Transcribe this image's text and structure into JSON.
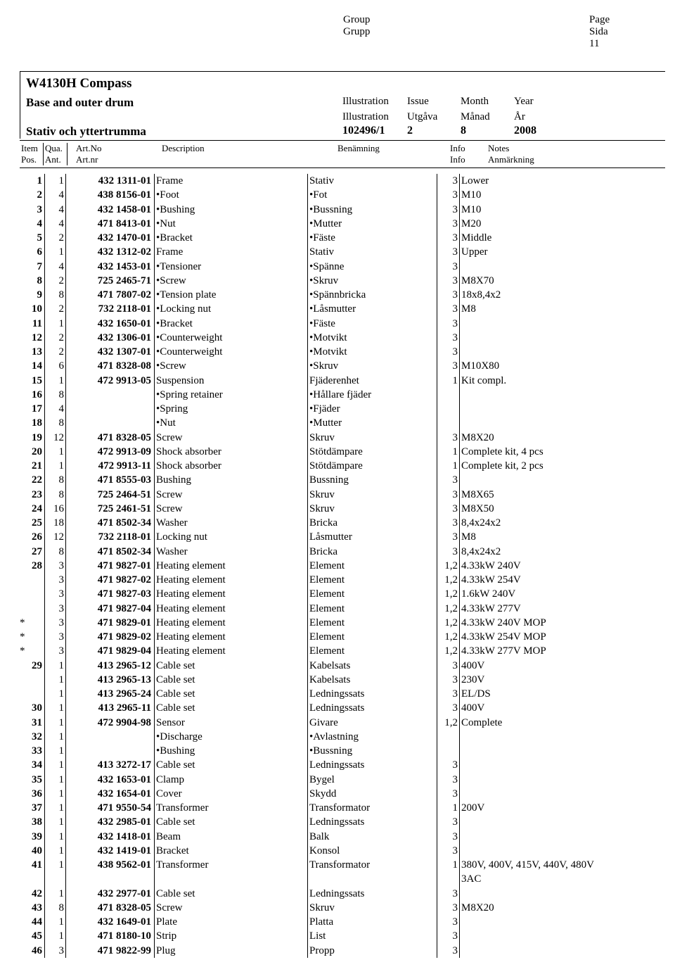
{
  "top": {
    "group_en": "Group",
    "group_sv": "Grupp",
    "page_en": "Page",
    "page_sv": "Sida",
    "page_no": "11"
  },
  "title": {
    "main": "W4130H Compass",
    "sub_en": "Base and outer drum",
    "sub_sv": "Stativ och yttertrumma",
    "ill_en": "Illustration",
    "ill_sv": "Illustration",
    "issue_en": "Issue",
    "issue_sv": "Utgåva",
    "month_en": "Month",
    "month_sv": "Månad",
    "year_en": "Year",
    "year_sv": "År",
    "ill_val": "102496/1",
    "issue_val": "2",
    "month_val": "8",
    "year_val": "2008"
  },
  "thead": {
    "item_en": "Item",
    "item_sv": "Pos.",
    "qua_en": "Qua.",
    "qua_sv": "Ant.",
    "art_en": "Art.No",
    "art_sv": "Art.nr",
    "desc_en": "Description",
    "ben": "Benämning",
    "info": "Info",
    "notes_en": "Notes",
    "notes_sv": "Anmärkning"
  },
  "rows": [
    {
      "star": "",
      "item": "1",
      "qua": "1",
      "art": "432 1311-01",
      "desc": "Frame",
      "ben": "Stativ",
      "info": "3",
      "notes": "Lower"
    },
    {
      "star": "",
      "item": "2",
      "qua": "4",
      "art": "438 8156-01",
      "desc": "•Foot",
      "ben": "•Fot",
      "info": "3",
      "notes": "M10"
    },
    {
      "star": "",
      "item": "3",
      "qua": "4",
      "art": "432 1458-01",
      "desc": "•Bushing",
      "ben": "•Bussning",
      "info": "3",
      "notes": "M10"
    },
    {
      "star": "",
      "item": "4",
      "qua": "4",
      "art": "471 8413-01",
      "desc": "•Nut",
      "ben": "•Mutter",
      "info": "3",
      "notes": "M20"
    },
    {
      "star": "",
      "item": "5",
      "qua": "2",
      "art": "432 1470-01",
      "desc": "•Bracket",
      "ben": "•Fäste",
      "info": "3",
      "notes": "Middle"
    },
    {
      "star": "",
      "item": "6",
      "qua": "1",
      "art": "432 1312-02",
      "desc": "Frame",
      "ben": "Stativ",
      "info": "3",
      "notes": "Upper"
    },
    {
      "star": "",
      "item": "7",
      "qua": "4",
      "art": "432 1453-01",
      "desc": "•Tensioner",
      "ben": "•Spänne",
      "info": "3",
      "notes": ""
    },
    {
      "star": "",
      "item": "8",
      "qua": "2",
      "art": "725 2465-71",
      "desc": "•Screw",
      "ben": "•Skruv",
      "info": "3",
      "notes": "M8X70"
    },
    {
      "star": "",
      "item": "9",
      "qua": "8",
      "art": "471 7807-02",
      "desc": "•Tension plate",
      "ben": "•Spännbricka",
      "info": "3",
      "notes": "18x8,4x2"
    },
    {
      "star": "",
      "item": "10",
      "qua": "2",
      "art": "732 2118-01",
      "desc": "•Locking nut",
      "ben": "•Låsmutter",
      "info": "3",
      "notes": "M8"
    },
    {
      "star": "",
      "item": "11",
      "qua": "1",
      "art": "432 1650-01",
      "desc": "•Bracket",
      "ben": "•Fäste",
      "info": "3",
      "notes": ""
    },
    {
      "star": "",
      "item": "12",
      "qua": "2",
      "art": "432 1306-01",
      "desc": "•Counterweight",
      "ben": "•Motvikt",
      "info": "3",
      "notes": ""
    },
    {
      "star": "",
      "item": "13",
      "qua": "2",
      "art": "432 1307-01",
      "desc": "•Counterweight",
      "ben": "•Motvikt",
      "info": "3",
      "notes": ""
    },
    {
      "star": "",
      "item": "14",
      "qua": "6",
      "art": "471 8328-08",
      "desc": "•Screw",
      "ben": "•Skruv",
      "info": "3",
      "notes": "M10X80"
    },
    {
      "star": "",
      "item": "15",
      "qua": "1",
      "art": "472 9913-05",
      "desc": "Suspension",
      "ben": "Fjäderenhet",
      "info": "1",
      "notes": "Kit compl."
    },
    {
      "star": "",
      "item": "16",
      "qua": "8",
      "art": "",
      "desc": "•Spring retainer",
      "ben": "•Hållare fjäder",
      "info": "",
      "notes": ""
    },
    {
      "star": "",
      "item": "17",
      "qua": "4",
      "art": "",
      "desc": "•Spring",
      "ben": "•Fjäder",
      "info": "",
      "notes": ""
    },
    {
      "star": "",
      "item": "18",
      "qua": "8",
      "art": "",
      "desc": "•Nut",
      "ben": "•Mutter",
      "info": "",
      "notes": ""
    },
    {
      "star": "",
      "item": "19",
      "qua": "12",
      "art": "471 8328-05",
      "desc": "Screw",
      "ben": "Skruv",
      "info": "3",
      "notes": "M8X20"
    },
    {
      "star": "",
      "item": "20",
      "qua": "1",
      "art": "472 9913-09",
      "desc": "Shock absorber",
      "ben": "Stötdämpare",
      "info": "1",
      "notes": "Complete kit, 4 pcs"
    },
    {
      "star": "",
      "item": "21",
      "qua": "1",
      "art": "472 9913-11",
      "desc": "Shock absorber",
      "ben": "Stötdämpare",
      "info": "1",
      "notes": "Complete kit, 2 pcs"
    },
    {
      "star": "",
      "item": "22",
      "qua": "8",
      "art": "471 8555-03",
      "desc": "Bushing",
      "ben": "Bussning",
      "info": "3",
      "notes": ""
    },
    {
      "star": "",
      "item": "23",
      "qua": "8",
      "art": "725 2464-51",
      "desc": "Screw",
      "ben": "Skruv",
      "info": "3",
      "notes": "M8X65"
    },
    {
      "star": "",
      "item": "24",
      "qua": "16",
      "art": "725 2461-51",
      "desc": "Screw",
      "ben": "Skruv",
      "info": "3",
      "notes": "M8X50"
    },
    {
      "star": "",
      "item": "25",
      "qua": "18",
      "art": "471 8502-34",
      "desc": "Washer",
      "ben": "Bricka",
      "info": "3",
      "notes": "8,4x24x2"
    },
    {
      "star": "",
      "item": "26",
      "qua": "12",
      "art": "732 2118-01",
      "desc": "Locking nut",
      "ben": "Låsmutter",
      "info": "3",
      "notes": "M8"
    },
    {
      "star": "",
      "item": "27",
      "qua": "8",
      "art": "471 8502-34",
      "desc": "Washer",
      "ben": "Bricka",
      "info": "3",
      "notes": "8,4x24x2"
    },
    {
      "star": "",
      "item": "28",
      "qua": "3",
      "art": "471 9827-01",
      "desc": "Heating element",
      "ben": "Element",
      "info": "1,2",
      "notes": "4.33kW 240V"
    },
    {
      "star": "",
      "item": "",
      "qua": "3",
      "art": "471 9827-02",
      "desc": "Heating element",
      "ben": "Element",
      "info": "1,2",
      "notes": "4.33kW 254V"
    },
    {
      "star": "",
      "item": "",
      "qua": "3",
      "art": "471 9827-03",
      "desc": "Heating element",
      "ben": "Element",
      "info": "1,2",
      "notes": "1.6kW 240V"
    },
    {
      "star": "",
      "item": "",
      "qua": "3",
      "art": "471 9827-04",
      "desc": "Heating element",
      "ben": "Element",
      "info": "1,2",
      "notes": "4.33kW 277V"
    },
    {
      "star": "*",
      "item": "",
      "qua": "3",
      "art": "471 9829-01",
      "desc": "Heating element",
      "ben": "Element",
      "info": "1,2",
      "notes": "4.33kW 240V MOP"
    },
    {
      "star": "*",
      "item": "",
      "qua": "3",
      "art": "471 9829-02",
      "desc": "Heating element",
      "ben": "Element",
      "info": "1,2",
      "notes": "4.33kW 254V MOP"
    },
    {
      "star": "*",
      "item": "",
      "qua": "3",
      "art": "471 9829-04",
      "desc": "Heating element",
      "ben": "Element",
      "info": "1,2",
      "notes": "4.33kW 277V MOP"
    },
    {
      "star": "",
      "item": "29",
      "qua": "1",
      "art": "413 2965-12",
      "desc": "Cable set",
      "ben": "Kabelsats",
      "info": "3",
      "notes": "400V"
    },
    {
      "star": "",
      "item": "",
      "qua": "1",
      "art": "413 2965-13",
      "desc": "Cable set",
      "ben": "Kabelsats",
      "info": "3",
      "notes": "230V"
    },
    {
      "star": "",
      "item": "",
      "qua": "1",
      "art": "413 2965-24",
      "desc": "Cable set",
      "ben": "Ledningssats",
      "info": "3",
      "notes": "EL/DS"
    },
    {
      "star": "",
      "item": "30",
      "qua": "1",
      "art": "413 2965-11",
      "desc": "Cable set",
      "ben": "Ledningssats",
      "info": "3",
      "notes": "400V"
    },
    {
      "star": "",
      "item": "31",
      "qua": "1",
      "art": "472 9904-98",
      "desc": "Sensor",
      "ben": "Givare",
      "info": "1,2",
      "notes": "Complete"
    },
    {
      "star": "",
      "item": "32",
      "qua": "1",
      "art": "",
      "desc": "•Discharge",
      "ben": "•Avlastning",
      "info": "",
      "notes": ""
    },
    {
      "star": "",
      "item": "33",
      "qua": "1",
      "art": "",
      "desc": "•Bushing",
      "ben": "•Bussning",
      "info": "",
      "notes": ""
    },
    {
      "star": "",
      "item": "34",
      "qua": "1",
      "art": "413 3272-17",
      "desc": "Cable set",
      "ben": "Ledningssats",
      "info": "3",
      "notes": ""
    },
    {
      "star": "",
      "item": "35",
      "qua": "1",
      "art": "432 1653-01",
      "desc": "Clamp",
      "ben": "Bygel",
      "info": "3",
      "notes": ""
    },
    {
      "star": "",
      "item": "36",
      "qua": "1",
      "art": "432 1654-01",
      "desc": "Cover",
      "ben": "Skydd",
      "info": "3",
      "notes": ""
    },
    {
      "star": "",
      "item": "37",
      "qua": "1",
      "art": "471 9550-54",
      "desc": "Transformer",
      "ben": "Transformator",
      "info": "1",
      "notes": "200V"
    },
    {
      "star": "",
      "item": "38",
      "qua": "1",
      "art": "432 2985-01",
      "desc": "Cable set",
      "ben": "Ledningssats",
      "info": "3",
      "notes": ""
    },
    {
      "star": "",
      "item": "39",
      "qua": "1",
      "art": "432 1418-01",
      "desc": "Beam",
      "ben": "Balk",
      "info": "3",
      "notes": ""
    },
    {
      "star": "",
      "item": "40",
      "qua": "1",
      "art": "432 1419-01",
      "desc": "Bracket",
      "ben": "Konsol",
      "info": "3",
      "notes": ""
    },
    {
      "star": "",
      "item": "41",
      "qua": "1",
      "art": "438 9562-01",
      "desc": "Transformer",
      "ben": "Transformator",
      "info": "1",
      "notes": "380V, 400V, 415V, 440V, 480V"
    },
    {
      "star": "",
      "item": "",
      "qua": "",
      "art": "",
      "desc": "",
      "ben": "",
      "info": "",
      "notes": "3AC"
    },
    {
      "star": "",
      "item": "42",
      "qua": "1",
      "art": "432 2977-01",
      "desc": "Cable set",
      "ben": "Ledningssats",
      "info": "3",
      "notes": ""
    },
    {
      "star": "",
      "item": "43",
      "qua": "8",
      "art": "471 8328-05",
      "desc": "Screw",
      "ben": "Skruv",
      "info": "3",
      "notes": "M8X20"
    },
    {
      "star": "",
      "item": "44",
      "qua": "1",
      "art": "432 1649-01",
      "desc": "Plate",
      "ben": "Platta",
      "info": "3",
      "notes": ""
    },
    {
      "star": "",
      "item": "45",
      "qua": "1",
      "art": "471 8180-10",
      "desc": "Strip",
      "ben": "List",
      "info": "3",
      "notes": ""
    },
    {
      "star": "",
      "item": "46",
      "qua": "3",
      "art": "471 9822-99",
      "desc": "Plug",
      "ben": "Propp",
      "info": "3",
      "notes": ""
    }
  ]
}
